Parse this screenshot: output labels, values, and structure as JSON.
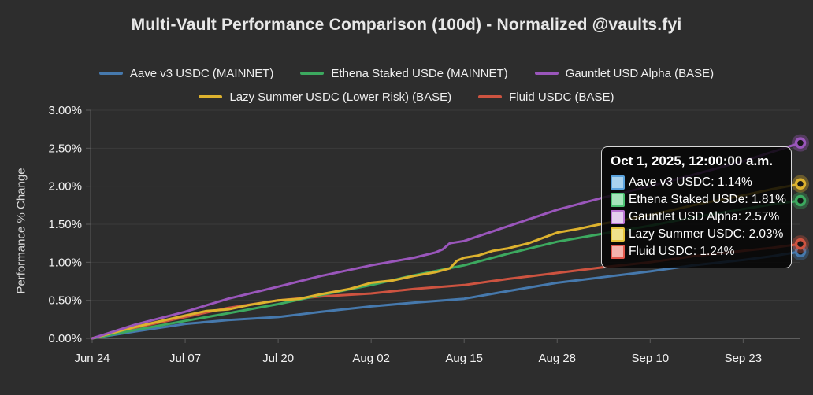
{
  "title": "Multi-Vault Performance Comparison (100d) - Normalized @vaults.fyi",
  "chart_data": {
    "type": "line",
    "title": "Multi-Vault Performance Comparison (100d) - Normalized @vaults.fyi",
    "xlabel": "",
    "ylabel": "Performance % Change",
    "ylim": [
      0,
      3
    ],
    "grid": "horizontal",
    "legend_position": "top",
    "x_tick_labels": [
      "Jun 24",
      "Jul 07",
      "Jul 20",
      "Aug 02",
      "Aug 15",
      "Aug 28",
      "Sep 10",
      "Sep 23"
    ],
    "x_tick_days": [
      0,
      13,
      26,
      39,
      52,
      65,
      78,
      91
    ],
    "x_domain_days": [
      0,
      99
    ],
    "y_ticks": [
      {
        "value": 3.0,
        "label": "3.00%"
      },
      {
        "value": 2.5,
        "label": "2.50%"
      },
      {
        "value": 2.0,
        "label": "2.00%"
      },
      {
        "value": 1.5,
        "label": "1.50%"
      },
      {
        "value": 1.0,
        "label": "1.00%"
      },
      {
        "value": 0.5,
        "label": "0.50%"
      },
      {
        "value": 0.0,
        "label": "0.00%"
      }
    ],
    "legend_rows": [
      [
        0,
        1,
        2
      ],
      [
        3,
        4
      ]
    ],
    "draw_order": [
      0,
      4,
      1,
      3,
      2
    ],
    "series": [
      {
        "name": "Aave v3 USDC",
        "legend_label": "Aave v3 USDC (MAINNET)",
        "color": "#4679ad",
        "swatch_fill": "#a9d2ee",
        "swatch_border": "#5aa2dd",
        "final_value_pct": 1.14,
        "points": [
          [
            0,
            0
          ],
          [
            6,
            0.09
          ],
          [
            13,
            0.19
          ],
          [
            19,
            0.24
          ],
          [
            26,
            0.28
          ],
          [
            32,
            0.35
          ],
          [
            39,
            0.42
          ],
          [
            45,
            0.47
          ],
          [
            52,
            0.52
          ],
          [
            58,
            0.62
          ],
          [
            65,
            0.73
          ],
          [
            71,
            0.8
          ],
          [
            78,
            0.88
          ],
          [
            84,
            0.96
          ],
          [
            91,
            1.03
          ],
          [
            95,
            1.08
          ],
          [
            99,
            1.14
          ]
        ]
      },
      {
        "name": "Ethena Staked USDe",
        "legend_label": "Ethena Staked USDe (MAINNET)",
        "color": "#3ca95f",
        "swatch_fill": "#a5e6bb",
        "swatch_border": "#4cc273",
        "final_value_pct": 1.81,
        "points": [
          [
            0,
            0
          ],
          [
            6,
            0.11
          ],
          [
            13,
            0.23
          ],
          [
            19,
            0.33
          ],
          [
            26,
            0.45
          ],
          [
            32,
            0.57
          ],
          [
            39,
            0.7
          ],
          [
            45,
            0.83
          ],
          [
            52,
            0.96
          ],
          [
            58,
            1.11
          ],
          [
            65,
            1.27
          ],
          [
            71,
            1.37
          ],
          [
            78,
            1.48
          ],
          [
            84,
            1.59
          ],
          [
            91,
            1.7
          ],
          [
            95,
            1.76
          ],
          [
            99,
            1.81
          ]
        ]
      },
      {
        "name": "Gauntlet USD Alpha",
        "legend_label": "Gauntlet USD Alpha (BASE)",
        "color": "#9a56bb",
        "swatch_fill": "#e4cdee",
        "swatch_border": "#bb74d4",
        "final_value_pct": 2.57,
        "points": [
          [
            0,
            0
          ],
          [
            6,
            0.18
          ],
          [
            13,
            0.35
          ],
          [
            19,
            0.52
          ],
          [
            26,
            0.68
          ],
          [
            32,
            0.82
          ],
          [
            39,
            0.96
          ],
          [
            45,
            1.06
          ],
          [
            48,
            1.13
          ],
          [
            49,
            1.17
          ],
          [
            50,
            1.25
          ],
          [
            52,
            1.28
          ],
          [
            58,
            1.47
          ],
          [
            65,
            1.69
          ],
          [
            71,
            1.84
          ],
          [
            78,
            2.0
          ],
          [
            84,
            2.15
          ],
          [
            91,
            2.33
          ],
          [
            95,
            2.45
          ],
          [
            99,
            2.57
          ]
        ]
      },
      {
        "name": "Lazy Summer USDC",
        "legend_label": "Lazy Summer USDC (Lower Risk) (BASE)",
        "color": "#ddb22e",
        "swatch_fill": "#f0e18c",
        "swatch_border": "#e6c23a",
        "final_value_pct": 2.03,
        "points": [
          [
            0,
            0
          ],
          [
            6,
            0.15
          ],
          [
            13,
            0.3
          ],
          [
            16,
            0.36
          ],
          [
            19,
            0.38
          ],
          [
            22,
            0.44
          ],
          [
            26,
            0.5
          ],
          [
            29,
            0.52
          ],
          [
            32,
            0.58
          ],
          [
            36,
            0.65
          ],
          [
            39,
            0.73
          ],
          [
            42,
            0.76
          ],
          [
            45,
            0.82
          ],
          [
            48,
            0.87
          ],
          [
            50,
            0.92
          ],
          [
            51,
            1.02
          ],
          [
            52,
            1.06
          ],
          [
            54,
            1.09
          ],
          [
            56,
            1.15
          ],
          [
            58,
            1.18
          ],
          [
            61,
            1.25
          ],
          [
            65,
            1.39
          ],
          [
            68,
            1.44
          ],
          [
            71,
            1.5
          ],
          [
            74,
            1.55
          ],
          [
            78,
            1.62
          ],
          [
            84,
            1.75
          ],
          [
            91,
            1.88
          ],
          [
            95,
            1.96
          ],
          [
            99,
            2.03
          ]
        ]
      },
      {
        "name": "Fluid USDC",
        "legend_label": "Fluid USDC (BASE)",
        "color": "#cd5340",
        "swatch_fill": "#f3b3ad",
        "swatch_border": "#e2574b",
        "final_value_pct": 1.24,
        "points": [
          [
            0,
            0
          ],
          [
            6,
            0.14
          ],
          [
            13,
            0.28
          ],
          [
            19,
            0.4
          ],
          [
            26,
            0.5
          ],
          [
            32,
            0.55
          ],
          [
            39,
            0.59
          ],
          [
            45,
            0.65
          ],
          [
            52,
            0.7
          ],
          [
            58,
            0.78
          ],
          [
            65,
            0.86
          ],
          [
            71,
            0.93
          ],
          [
            78,
            1.0
          ],
          [
            84,
            1.08
          ],
          [
            91,
            1.15
          ],
          [
            95,
            1.19
          ],
          [
            99,
            1.24
          ]
        ]
      }
    ]
  },
  "tooltip": {
    "title": "Oct 1, 2025, 12:00:00 a.m.",
    "rows": [
      {
        "label": "Aave v3 USDC: 1.14%"
      },
      {
        "label": "Ethena Staked USDe: 1.81%"
      },
      {
        "label": "Gauntlet USD Alpha: 2.57%"
      },
      {
        "label": "Lazy Summer USDC: 2.03%"
      },
      {
        "label": "Fluid USDC: 1.24%"
      }
    ]
  }
}
